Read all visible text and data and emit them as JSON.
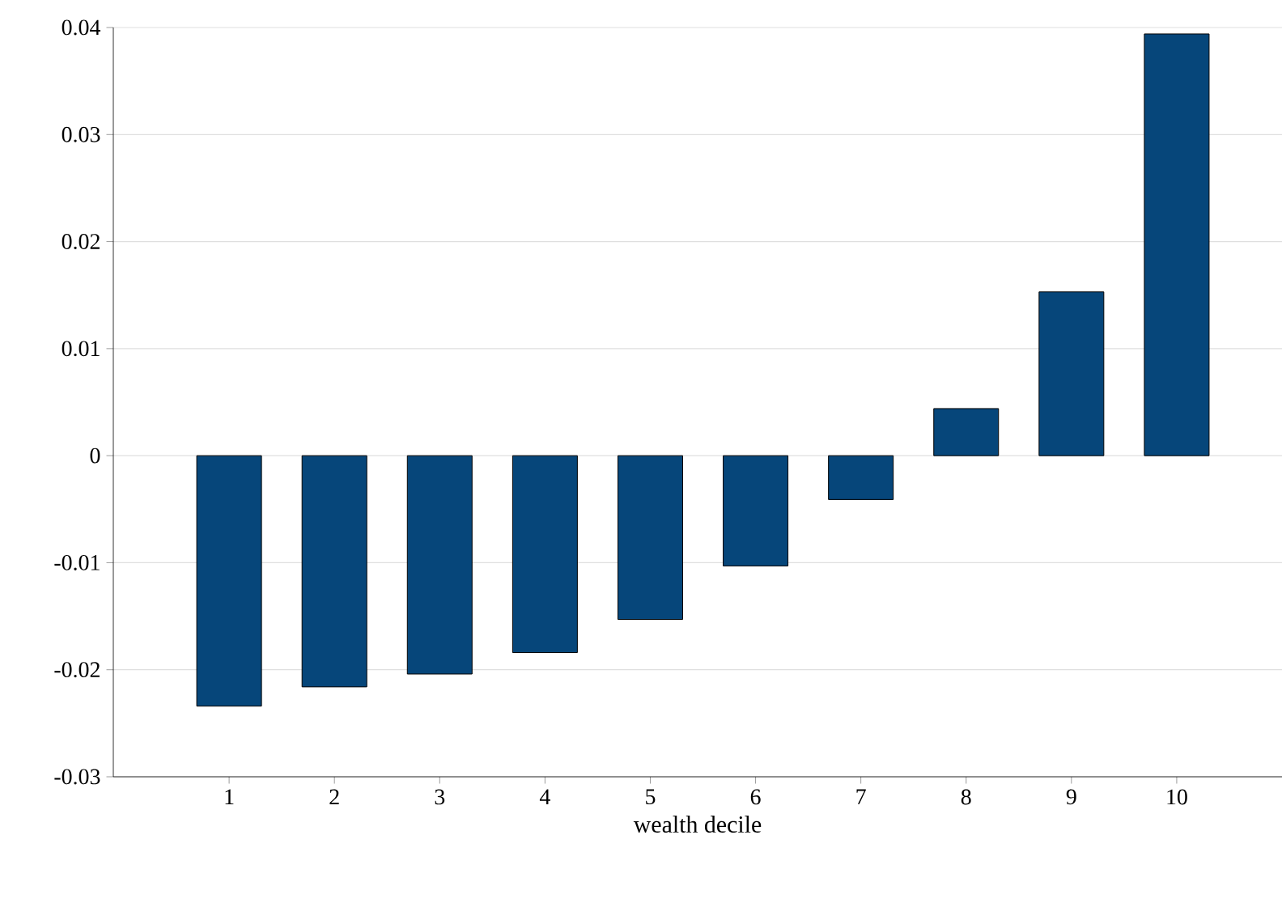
{
  "chart_data": {
    "type": "bar",
    "xlabel": "wealth decile",
    "categories": [
      "1",
      "2",
      "3",
      "4",
      "5",
      "6",
      "7",
      "8",
      "9",
      "10"
    ],
    "values": [
      -0.0234,
      -0.0216,
      -0.0204,
      -0.0184,
      -0.0153,
      -0.0103,
      -0.0041,
      0.0044,
      0.0153,
      0.0394
    ],
    "color": "#06467a",
    "ylim": [
      -0.03,
      0.04
    ],
    "yticks": [
      -0.03,
      -0.02,
      -0.01,
      0,
      0.01,
      0.02,
      0.03,
      0.04
    ],
    "grid": "y"
  }
}
